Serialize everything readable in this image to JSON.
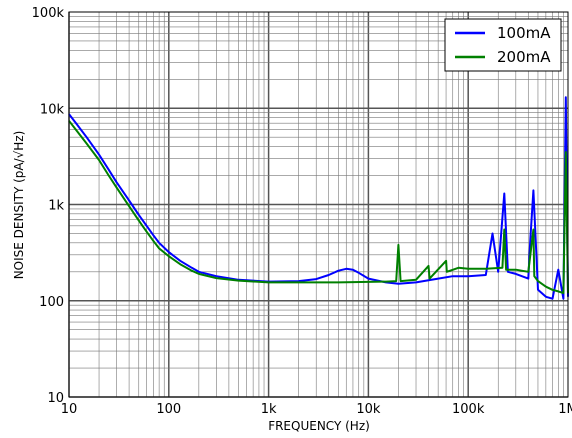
{
  "chart_data": {
    "type": "line",
    "title": "",
    "xlabel": "FREQUENCY (Hz)",
    "ylabel": "NOISE DENSITY (pA/√Hz)",
    "xscale": "log",
    "yscale": "log",
    "xlim": [
      10,
      1000000
    ],
    "ylim": [
      10,
      100000
    ],
    "grid": true,
    "legend_position": "top-right",
    "x_tick_labels": [
      "10",
      "100",
      "1k",
      "10k",
      "100k",
      "1M"
    ],
    "y_tick_labels": [
      "10",
      "100",
      "1k",
      "10k",
      "100k"
    ],
    "series": [
      {
        "name": "100mA",
        "color": "#0000ff",
        "points": [
          [
            10,
            8700
          ],
          [
            12,
            6800
          ],
          [
            15,
            5000
          ],
          [
            20,
            3300
          ],
          [
            25,
            2300
          ],
          [
            30,
            1700
          ],
          [
            40,
            1100
          ],
          [
            50,
            780
          ],
          [
            60,
            600
          ],
          [
            70,
            480
          ],
          [
            80,
            400
          ],
          [
            100,
            320
          ],
          [
            130,
            260
          ],
          [
            170,
            220
          ],
          [
            200,
            200
          ],
          [
            300,
            180
          ],
          [
            500,
            165
          ],
          [
            1000,
            158
          ],
          [
            2000,
            160
          ],
          [
            3000,
            168
          ],
          [
            4000,
            185
          ],
          [
            5000,
            205
          ],
          [
            6000,
            215
          ],
          [
            7000,
            210
          ],
          [
            8000,
            195
          ],
          [
            10000,
            170
          ],
          [
            15000,
            155
          ],
          [
            20000,
            150
          ],
          [
            30000,
            155
          ],
          [
            50000,
            170
          ],
          [
            70000,
            180
          ],
          [
            100000,
            180
          ],
          [
            150000,
            185
          ],
          [
            175000,
            500
          ],
          [
            200000,
            200
          ],
          [
            230000,
            1300
          ],
          [
            250000,
            200
          ],
          [
            300000,
            190
          ],
          [
            400000,
            170
          ],
          [
            420000,
            450
          ],
          [
            450000,
            1400
          ],
          [
            500000,
            130
          ],
          [
            600000,
            110
          ],
          [
            700000,
            105
          ],
          [
            800000,
            210
          ],
          [
            900000,
            105
          ],
          [
            950000,
            13000
          ],
          [
            1000000,
            110
          ]
        ]
      },
      {
        "name": "200mA",
        "color": "#008000",
        "points": [
          [
            10,
            7400
          ],
          [
            12,
            5800
          ],
          [
            15,
            4300
          ],
          [
            20,
            2900
          ],
          [
            25,
            2000
          ],
          [
            30,
            1500
          ],
          [
            40,
            960
          ],
          [
            50,
            680
          ],
          [
            60,
            520
          ],
          [
            70,
            420
          ],
          [
            80,
            350
          ],
          [
            100,
            290
          ],
          [
            130,
            240
          ],
          [
            170,
            205
          ],
          [
            200,
            190
          ],
          [
            300,
            172
          ],
          [
            500,
            162
          ],
          [
            1000,
            155
          ],
          [
            2000,
            155
          ],
          [
            5000,
            155
          ],
          [
            10000,
            157
          ],
          [
            15000,
            158
          ],
          [
            19000,
            160
          ],
          [
            20000,
            380
          ],
          [
            21000,
            160
          ],
          [
            30000,
            165
          ],
          [
            40000,
            230
          ],
          [
            41000,
            170
          ],
          [
            60000,
            260
          ],
          [
            61000,
            200
          ],
          [
            80000,
            220
          ],
          [
            100000,
            215
          ],
          [
            150000,
            215
          ],
          [
            220000,
            220
          ],
          [
            230000,
            550
          ],
          [
            240000,
            210
          ],
          [
            300000,
            210
          ],
          [
            400000,
            200
          ],
          [
            450000,
            550
          ],
          [
            460000,
            180
          ],
          [
            500000,
            160
          ],
          [
            600000,
            140
          ],
          [
            700000,
            130
          ],
          [
            800000,
            125
          ],
          [
            900000,
            120
          ],
          [
            950000,
            3500
          ],
          [
            1000000,
            120
          ]
        ]
      }
    ]
  }
}
